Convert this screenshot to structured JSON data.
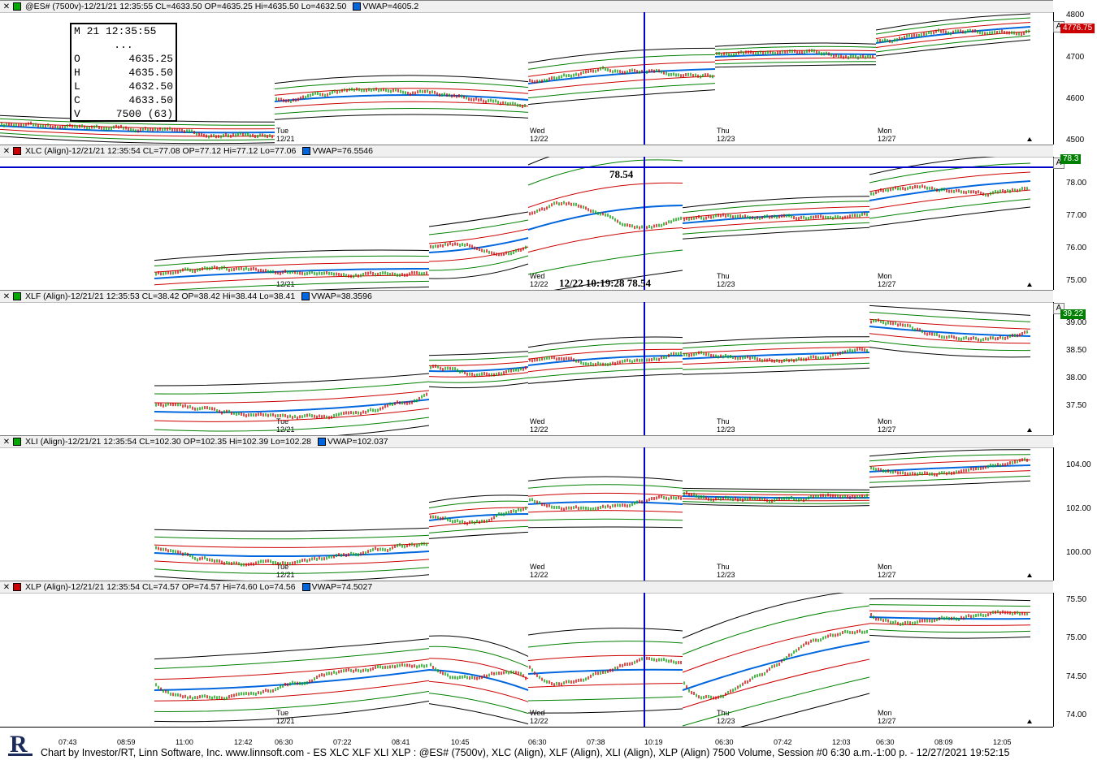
{
  "panes": [
    {
      "id": "es",
      "title": "@ES# (7500v)-12/21/21 12:35:55 CL=4633.50 OP=4635.25 Hi=4635.50 Lo=4632.50",
      "vwap": "VWAP=4605.2",
      "yticks": [
        "4800",
        "4700",
        "4600",
        "4500"
      ],
      "price_tag": "4776.75",
      "price_tag_color": "#cc0000",
      "days": [
        {
          "name": "Tue",
          "date": "12/21"
        },
        {
          "name": "Wed",
          "date": "12/22"
        },
        {
          "name": "Thu",
          "date": "12/23"
        },
        {
          "name": "Mon",
          "date": "12/27"
        }
      ]
    },
    {
      "id": "xlc",
      "title": "XLC (Align)-12/21/21 12:35:54 CL=77.08 OP=77.12 Hi=77.12 Lo=77.06",
      "vwap": "VWAP=76.5546",
      "yticks": [
        "78.00",
        "77.00",
        "76.00",
        "75.00"
      ],
      "price_tag": "78.3",
      "price_tag_color": "#008000",
      "days": [
        {
          "name": "",
          "date": "12/21"
        },
        {
          "name": "Wed",
          "date": "12/22"
        },
        {
          "name": "Thu",
          "date": "12/23"
        },
        {
          "name": "Mon",
          "date": "12/27"
        }
      ]
    },
    {
      "id": "xlf",
      "title": "XLF (Align)-12/21/21 12:35:53 CL=38.42 OP=38.42 Hi=38.44 Lo=38.41",
      "vwap": "VWAP=38.3596",
      "yticks": [
        "39.00",
        "38.50",
        "38.00",
        "37.50"
      ],
      "price_tag": "39.22",
      "price_tag_color": "#008000",
      "days": [
        {
          "name": "Tue",
          "date": "12/21"
        },
        {
          "name": "Wed",
          "date": "12/22"
        },
        {
          "name": "Thu",
          "date": "12/23"
        },
        {
          "name": "Mon",
          "date": "12/27"
        }
      ]
    },
    {
      "id": "xli",
      "title": "XLI (Align)-12/21/21 12:35:54 CL=102.30 OP=102.35 Hi=102.39 Lo=102.28",
      "vwap": "VWAP=102.037",
      "yticks": [
        "104.00",
        "102.00",
        "100.00"
      ],
      "price_tag": "",
      "price_tag_color": "#008000",
      "days": [
        {
          "name": "Tue",
          "date": "12/21"
        },
        {
          "name": "Wed",
          "date": "12/22"
        },
        {
          "name": "Thu",
          "date": "12/23"
        },
        {
          "name": "Mon",
          "date": "12/27"
        }
      ]
    },
    {
      "id": "xlp",
      "title": "XLP (Align)-12/21/21 12:35:54 CL=74.57 OP=74.57 Hi=74.60 Lo=74.56",
      "vwap": "VWAP=74.5027",
      "yticks": [
        "75.50",
        "75.00",
        "74.50",
        "74.00"
      ],
      "price_tag": "",
      "price_tag_color": "#008000",
      "days": [
        {
          "name": "Tue",
          "date": "12/21"
        },
        {
          "name": "Wed",
          "date": "12/22"
        },
        {
          "name": "Thu",
          "date": "12/23"
        },
        {
          "name": "Mon",
          "date": "12/27"
        }
      ]
    }
  ],
  "ohlc_box": {
    "date": "M 21 12:35:55",
    "dots": "...",
    "o_label": "O",
    "o": "4635.25",
    "h_label": "H",
    "h": "4635.50",
    "l_label": "L",
    "l": "4632.50",
    "c_label": "C",
    "c": "4633.50",
    "v_label": "V",
    "v": "7500 (63)"
  },
  "cursor": {
    "price_label": "78.54",
    "time_label": "12/22 10:19:28  78.54"
  },
  "time_axis": [
    "07:43",
    "08:59",
    "11:00",
    "12:42",
    "06:30",
    "07:22",
    "08:41",
    "10:45",
    "06:30",
    "07:38",
    "10:19",
    "06:30",
    "07:42",
    "12:03",
    "06:30",
    "08:09",
    "12:05"
  ],
  "footer": "Chart by Investor/RT, Linn Software, Inc. www.linnsoft.com - ES XLC XLF XLI XLP : @ES# (7500v), XLC (Align), XLF (Align), XLI (Align), XLP (Align) 7500 Volume, Session #0 6:30 a.m.-1:00 p. - 12/27/2021 19:52:15",
  "a_button": "A",
  "close_glyph": "✕",
  "colors": {
    "vwap": "#0066dd",
    "upper_band": "#cc0000",
    "lower_band": "#008000",
    "envelope": "#000000",
    "cursor": "#0000cc"
  }
}
